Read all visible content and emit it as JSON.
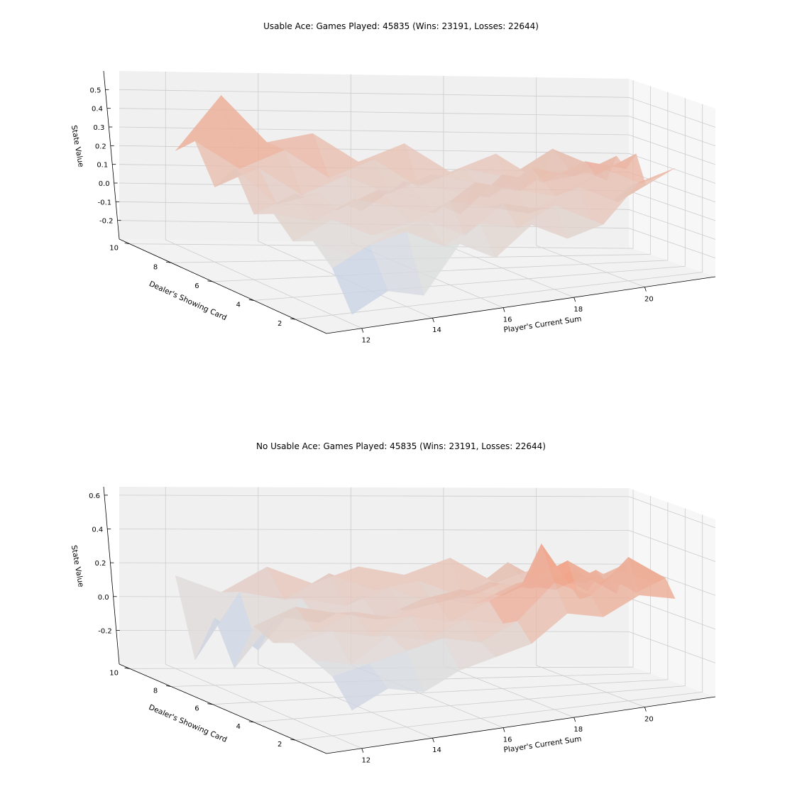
{
  "chart_data": [
    {
      "type": "surface3d",
      "title": "Usable Ace: Games Played: 45835 (Wins: 23191, Losses: 22644)",
      "xlabel": "Player's Current Sum",
      "ylabel": "Dealer's Showing Card",
      "zlabel": "State Value",
      "x": [
        12,
        13,
        14,
        15,
        16,
        17,
        18,
        19,
        20,
        21
      ],
      "y": [
        1,
        2,
        3,
        4,
        5,
        6,
        7,
        8,
        9,
        10
      ],
      "xticks": [
        "12",
        "14",
        "16",
        "18",
        "20"
      ],
      "yticks": [
        "2",
        "4",
        "6",
        "8",
        "10"
      ],
      "zticks": [
        "-0.2",
        "-0.1",
        "0.0",
        "0.1",
        "0.2",
        "0.3",
        "0.4",
        "0.5"
      ],
      "zlim": [
        -0.3,
        0.6
      ],
      "grid": true,
      "colormap": "coolwarm",
      "z": [
        [
          -0.25,
          -0.15,
          -0.2,
          0.05,
          -0.05,
          0.1,
          0.0,
          0.05,
          0.25,
          0.3
        ],
        [
          -0.05,
          0.05,
          0.1,
          0.0,
          0.1,
          0.05,
          0.15,
          0.05,
          0.2,
          0.25
        ],
        [
          0.05,
          -0.05,
          0.05,
          0.1,
          0.0,
          0.15,
          0.1,
          0.2,
          0.1,
          0.2
        ],
        [
          0.0,
          0.1,
          0.0,
          0.05,
          0.15,
          0.1,
          0.05,
          0.15,
          0.25,
          0.15
        ],
        [
          0.1,
          0.05,
          0.15,
          0.1,
          0.05,
          0.2,
          0.15,
          0.1,
          0.2,
          0.3
        ],
        [
          0.05,
          0.15,
          0.05,
          0.15,
          0.1,
          0.0,
          0.2,
          0.15,
          0.25,
          0.2
        ],
        [
          0.25,
          0.05,
          0.1,
          0.0,
          0.15,
          0.1,
          0.05,
          0.2,
          0.15,
          0.25
        ],
        [
          0.1,
          0.2,
          0.05,
          0.15,
          0.05,
          0.15,
          0.1,
          0.05,
          0.2,
          0.1
        ],
        [
          0.3,
          0.15,
          0.25,
          0.1,
          0.2,
          0.05,
          0.15,
          0.1,
          0.25,
          0.15
        ],
        [
          0.2,
          0.5,
          0.25,
          0.3,
          0.15,
          0.25,
          0.1,
          0.2,
          0.05,
          0.1
        ]
      ]
    },
    {
      "type": "surface3d",
      "title": "No Usable Ace: Games Played: 45835 (Wins: 23191, Losses: 22644)",
      "xlabel": "Player's Current Sum",
      "ylabel": "Dealer's Showing Card",
      "zlabel": "State Value",
      "x": [
        12,
        13,
        14,
        15,
        16,
        17,
        18,
        19,
        20,
        21
      ],
      "y": [
        1,
        2,
        3,
        4,
        5,
        6,
        7,
        8,
        9,
        10
      ],
      "xticks": [
        "12",
        "14",
        "16",
        "18",
        "20"
      ],
      "yticks": [
        "2",
        "4",
        "6",
        "8",
        "10"
      ],
      "zticks": [
        "-0.2",
        "0.0",
        "0.2",
        "0.4",
        "0.6"
      ],
      "zlim": [
        -0.4,
        0.65
      ],
      "grid": true,
      "colormap": "coolwarm",
      "z": [
        [
          -0.2,
          -0.1,
          -0.15,
          -0.05,
          0.0,
          0.05,
          0.2,
          0.15,
          0.25,
          0.2
        ],
        [
          -0.05,
          0.0,
          0.05,
          0.1,
          0.05,
          0.15,
          0.35,
          0.25,
          0.45,
          0.3
        ],
        [
          0.0,
          -0.05,
          0.1,
          0.05,
          0.15,
          0.1,
          0.55,
          0.2,
          0.35,
          0.25
        ],
        [
          0.05,
          0.1,
          0.05,
          0.15,
          0.1,
          0.2,
          0.3,
          0.4,
          0.25,
          0.2
        ],
        [
          0.0,
          0.05,
          0.15,
          0.1,
          0.2,
          0.15,
          0.25,
          0.2,
          0.3,
          0.15
        ],
        [
          0.05,
          0.15,
          0.1,
          0.05,
          0.15,
          0.2,
          0.15,
          0.25,
          0.2,
          0.3
        ],
        [
          -0.25,
          0.05,
          0.0,
          0.15,
          0.05,
          0.1,
          0.2,
          0.15,
          0.25,
          0.1
        ],
        [
          0.0,
          -0.2,
          0.1,
          0.05,
          0.15,
          0.05,
          0.1,
          0.2,
          0.15,
          0.2
        ],
        [
          -0.3,
          0.1,
          0.05,
          0.2,
          0.1,
          0.15,
          0.05,
          0.25,
          0.1,
          0.15
        ],
        [
          0.15,
          0.05,
          0.2,
          0.1,
          0.2,
          0.15,
          0.25,
          0.1,
          0.2,
          0.05
        ]
      ]
    }
  ]
}
